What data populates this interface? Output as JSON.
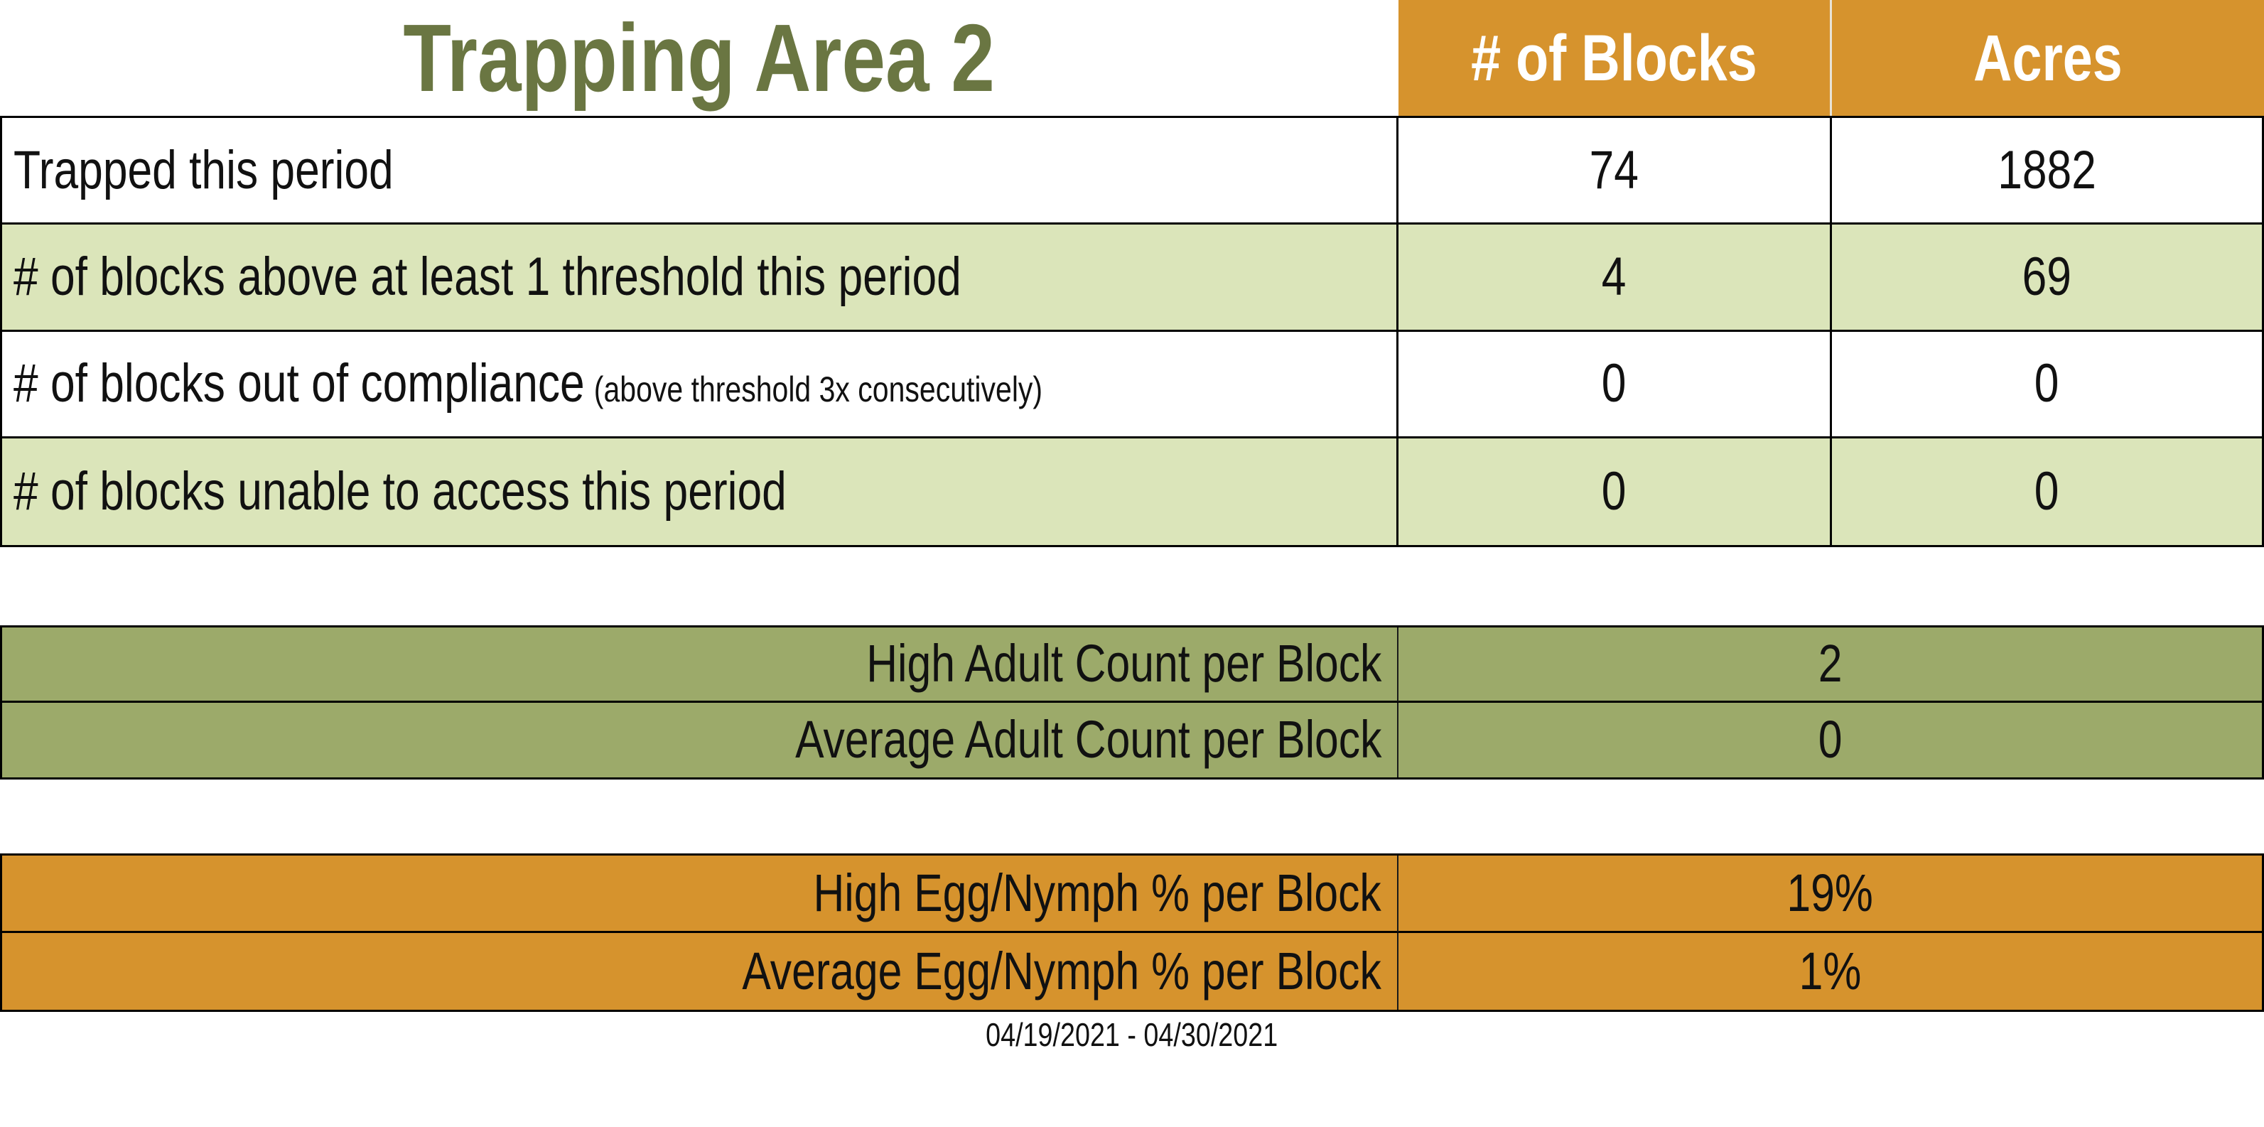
{
  "title": "Trapping Area 2",
  "header": {
    "col_blocks": "# of Blocks",
    "col_acres": "Acres"
  },
  "summary_table": {
    "rows": [
      {
        "label": "Trapped this period",
        "note": "",
        "blocks": "74",
        "acres": "1882"
      },
      {
        "label": "# of blocks above at least 1 threshold this period",
        "note": "",
        "blocks": "4",
        "acres": "69"
      },
      {
        "label": "# of blocks out of compliance",
        "note": "(above threshold 3x consecutively)",
        "blocks": "0",
        "acres": "0"
      },
      {
        "label": "# of blocks unable to access this period",
        "note": "",
        "blocks": "0",
        "acres": "0"
      }
    ]
  },
  "adult_count_table": {
    "rows": [
      {
        "label": "High Adult Count per Block",
        "value": "2"
      },
      {
        "label": "Average Adult Count per Block",
        "value": "0"
      }
    ]
  },
  "egg_nymph_table": {
    "rows": [
      {
        "label": "High Egg/Nymph % per Block",
        "value": "19%"
      },
      {
        "label": "Average Egg/Nymph % per Block",
        "value": "1%"
      }
    ]
  },
  "footer": {
    "date_range": "04/19/2021 - 04/30/2021"
  },
  "colors": {
    "accent_orange": "#D6932D",
    "light_green": "#DBE5BA",
    "sage_green": "#9CAA6A",
    "title_olive": "#6A7642",
    "border_black": "#000000"
  }
}
